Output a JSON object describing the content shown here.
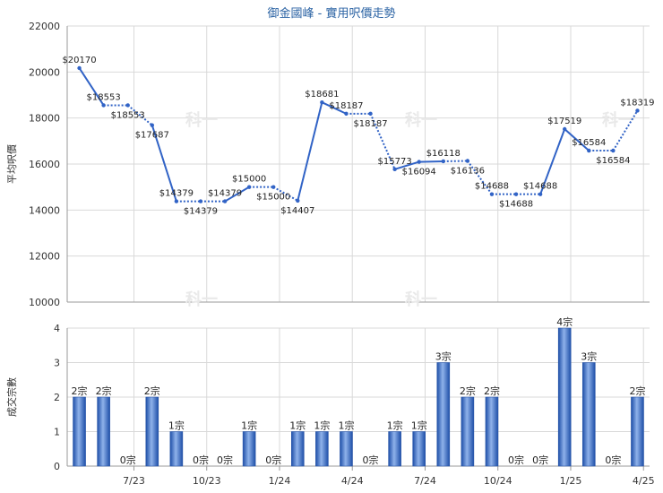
{
  "chart_data": [
    {
      "type": "line",
      "title": "御金國峰 - 實用呎價走勢",
      "ylabel": "平均呎價",
      "ylim": [
        10000,
        22000
      ],
      "yticks": [
        10000,
        12000,
        14000,
        16000,
        18000,
        20000,
        22000
      ],
      "x_labels": [
        "7/23",
        "10/23",
        "1/24",
        "4/24",
        "7/24",
        "10/24",
        "1/25",
        "4/25"
      ],
      "grid": true,
      "color": "#3163c6",
      "values": [
        20170,
        18553,
        18553,
        17687,
        14379,
        14379,
        14379,
        15000,
        15000,
        14407,
        18681,
        18187,
        18187,
        15773,
        16094,
        16118,
        16136,
        14688,
        14688,
        14688,
        17519,
        16584,
        16584,
        18319
      ],
      "point_labels": [
        "$20170",
        "$18553",
        "$18553",
        "$17687",
        "$14379",
        "$14379",
        "$14379",
        "$15000",
        "$15000",
        "$14407",
        "$18681",
        "$18187",
        "$18187",
        "$15773",
        "$16094",
        "$16118",
        "$16136",
        "$14688",
        "$14688",
        "$14688",
        "$17519",
        "$16584",
        "$16584",
        "$18319"
      ],
      "has_data": [
        true,
        true,
        false,
        true,
        true,
        false,
        true,
        true,
        false,
        true,
        true,
        true,
        false,
        true,
        true,
        true,
        false,
        true,
        false,
        true,
        true,
        true,
        false,
        true
      ]
    },
    {
      "type": "bar",
      "ylabel": "成交宗數",
      "ylim": [
        0,
        4
      ],
      "yticks": [
        0,
        1,
        2,
        3,
        4
      ],
      "x_labels": [
        "7/23",
        "10/23",
        "1/24",
        "4/24",
        "7/24",
        "10/24",
        "1/25",
        "4/25"
      ],
      "color": "#3163c6",
      "values": [
        2,
        2,
        0,
        2,
        1,
        0,
        0,
        1,
        0,
        1,
        1,
        1,
        0,
        1,
        1,
        3,
        2,
        2,
        0,
        0,
        4,
        3,
        0,
        2
      ],
      "value_labels": [
        "2宗",
        "2宗",
        "0宗",
        "2宗",
        "1宗",
        "0宗",
        "0宗",
        "1宗",
        "0宗",
        "1宗",
        "1宗",
        "1宗",
        "0宗",
        "1宗",
        "1宗",
        "3宗",
        "2宗",
        "2宗",
        "0宗",
        "0宗",
        "4宗",
        "3宗",
        "0宗",
        "2宗"
      ]
    }
  ],
  "watermark": "科一"
}
